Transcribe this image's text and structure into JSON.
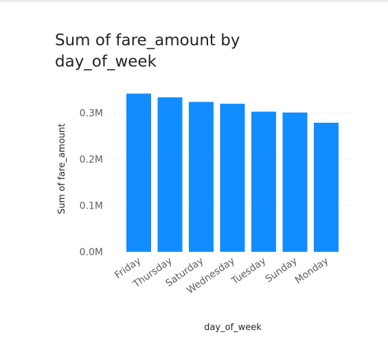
{
  "chart_data": {
    "type": "bar",
    "title": "Sum of fare_amount by day_of_week",
    "xlabel": "day_of_week",
    "ylabel": "Sum of fare_amount",
    "categories": [
      "Friday",
      "Thursday",
      "Saturday",
      "Wednesday",
      "Tuesday",
      "Sunday",
      "Monday"
    ],
    "values": [
      342000,
      334000,
      324000,
      320000,
      303000,
      301000,
      279000
    ],
    "ylim": [
      0,
      350000
    ],
    "yticks": [
      0,
      100000,
      200000,
      300000
    ],
    "ytick_labels": [
      "0.0M",
      "0.1M",
      "0.2M",
      "0.3M"
    ],
    "grid": true,
    "bar_color": "#118dff"
  }
}
